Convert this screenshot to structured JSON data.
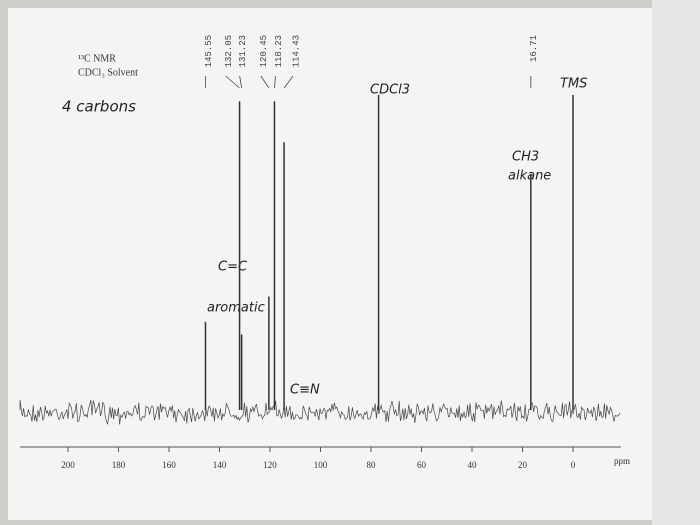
{
  "chart_data": {
    "type": "stem",
    "title": "¹³C NMR",
    "subtitle": "CDCl₃ Solvent",
    "x_label": "ppm",
    "xlim": [
      219,
      -19
    ],
    "xticks": [
      200,
      180,
      160,
      140,
      120,
      100,
      80,
      60,
      40,
      20,
      0
    ],
    "ylim": [
      0,
      100
    ],
    "color": "#333333",
    "peaks": {
      "x": [
        145.55,
        132.05,
        131.23,
        120.45,
        118.23,
        114.43,
        16.71
      ],
      "values": [
        28,
        98,
        24,
        36,
        98,
        85,
        75
      ]
    },
    "reference_peaks": {
      "x": [
        77,
        0
      ],
      "values": [
        100,
        100
      ]
    },
    "annotations": [
      "4 carbons",
      "C=C",
      "aromatic",
      "C≡N",
      "CDCl3",
      "CH3",
      "alkane",
      "TMS"
    ]
  }
}
